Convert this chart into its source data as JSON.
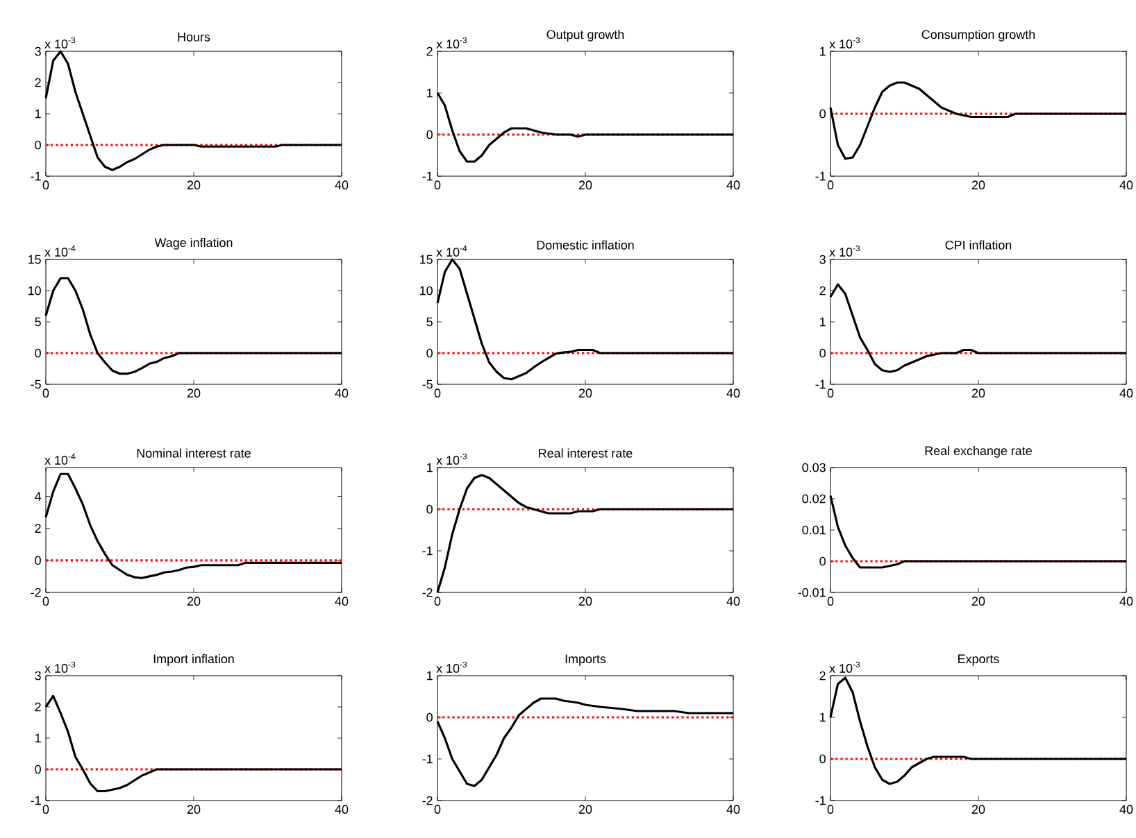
{
  "chart_data": [
    {
      "type": "line",
      "title": "Hours",
      "annotations": [
        "x 10$^{-3}$"
      ],
      "xlim": [
        0,
        40
      ],
      "xticks": [
        0,
        20,
        40
      ],
      "ylim": [
        -1,
        3
      ],
      "yticks": [
        -1,
        0,
        1,
        2,
        3
      ],
      "ref_lines": [
        {
          "axis": "y",
          "value": 0,
          "color": "#ff0000",
          "line_style": "dotted"
        }
      ],
      "series": [
        {
          "color": "#000000",
          "x": [
            0,
            1,
            2,
            3,
            4,
            5,
            6,
            7,
            8,
            9,
            10,
            11,
            12,
            13,
            14,
            15,
            16,
            20,
            21,
            31,
            32,
            40
          ],
          "values": [
            1.5,
            2.7,
            3.0,
            2.6,
            1.7,
            1.0,
            0.3,
            -0.4,
            -0.7,
            -0.8,
            -0.7,
            -0.55,
            -0.45,
            -0.3,
            -0.15,
            -0.05,
            0,
            0,
            -0.05,
            -0.05,
            0,
            0
          ]
        }
      ]
    },
    {
      "type": "line",
      "title": "Output growth",
      "annotations": [
        "x 10$^{-3}$"
      ],
      "xlim": [
        0,
        40
      ],
      "xticks": [
        0,
        20,
        40
      ],
      "ylim": [
        -1,
        2
      ],
      "yticks": [
        -1,
        0,
        1,
        2
      ],
      "ref_lines": [
        {
          "axis": "y",
          "value": 0,
          "color": "#ff0000",
          "line_style": "dotted"
        }
      ],
      "series": [
        {
          "color": "#000000",
          "x": [
            0,
            1,
            2,
            3,
            4,
            5,
            6,
            7,
            8,
            9,
            10,
            12,
            13,
            14,
            16,
            18,
            19,
            20,
            40
          ],
          "values": [
            1.0,
            0.7,
            0.1,
            -0.4,
            -0.65,
            -0.65,
            -0.5,
            -0.25,
            -0.1,
            0.05,
            0.15,
            0.15,
            0.1,
            0.05,
            0,
            0,
            -0.05,
            0,
            0
          ]
        }
      ]
    },
    {
      "type": "line",
      "title": "Consumption growth",
      "annotations": [
        "x 10$^{-3}$"
      ],
      "xlim": [
        0,
        40
      ],
      "xticks": [
        0,
        20,
        40
      ],
      "ylim": [
        -1,
        1
      ],
      "yticks": [
        -1,
        0,
        1
      ],
      "ref_lines": [
        {
          "axis": "y",
          "value": 0,
          "color": "#ff0000",
          "line_style": "dotted"
        }
      ],
      "series": [
        {
          "color": "#000000",
          "x": [
            0,
            1,
            2,
            3,
            4,
            5,
            6,
            7,
            8,
            9,
            10,
            11,
            12,
            13,
            14,
            15,
            16,
            17,
            19,
            24,
            25,
            40
          ],
          "values": [
            0.1,
            -0.5,
            -0.72,
            -0.7,
            -0.5,
            -0.2,
            0.1,
            0.35,
            0.45,
            0.5,
            0.5,
            0.45,
            0.4,
            0.3,
            0.2,
            0.1,
            0.05,
            0,
            -0.05,
            -0.05,
            0,
            0
          ]
        }
      ]
    },
    {
      "type": "line",
      "title": "Wage inflation",
      "annotations": [
        "x 10$^{-4}$"
      ],
      "xlim": [
        0,
        40
      ],
      "xticks": [
        0,
        20,
        40
      ],
      "ylim": [
        -5,
        15
      ],
      "yticks": [
        -5,
        0,
        5,
        10,
        15
      ],
      "ref_lines": [
        {
          "axis": "y",
          "value": 0,
          "color": "#ff0000",
          "line_style": "dotted"
        }
      ],
      "series": [
        {
          "color": "#000000",
          "x": [
            0,
            1,
            2,
            3,
            4,
            5,
            6,
            7,
            8,
            9,
            10,
            11,
            12,
            13,
            14,
            15,
            16,
            17,
            18,
            40
          ],
          "values": [
            6,
            10,
            12,
            12,
            10,
            7,
            3,
            0,
            -1.5,
            -2.8,
            -3.3,
            -3.3,
            -3,
            -2.4,
            -1.7,
            -1.4,
            -0.8,
            -0.5,
            0,
            0
          ]
        }
      ]
    },
    {
      "type": "line",
      "title": "Domestic inflation",
      "annotations": [
        "x 10$^{-4}$"
      ],
      "xlim": [
        0,
        40
      ],
      "xticks": [
        0,
        20,
        40
      ],
      "ylim": [
        -5,
        15
      ],
      "yticks": [
        -5,
        0,
        5,
        10,
        15
      ],
      "ref_lines": [
        {
          "axis": "y",
          "value": 0,
          "color": "#ff0000",
          "line_style": "dotted"
        }
      ],
      "series": [
        {
          "color": "#000000",
          "x": [
            0,
            1,
            2,
            3,
            4,
            5,
            6,
            7,
            8,
            9,
            10,
            11,
            12,
            13,
            14,
            15,
            16,
            17,
            18,
            19,
            21,
            22,
            40
          ],
          "values": [
            8,
            13,
            15,
            13.5,
            9.5,
            5.5,
            1.5,
            -1.5,
            -3,
            -4,
            -4.2,
            -3.7,
            -3.2,
            -2.3,
            -1.5,
            -0.8,
            -0.1,
            0.1,
            0.2,
            0.5,
            0.5,
            0,
            0
          ]
        }
      ]
    },
    {
      "type": "line",
      "title": "CPI inflation",
      "annotations": [
        "x 10$^{-3}$"
      ],
      "xlim": [
        0,
        40
      ],
      "xticks": [
        0,
        20,
        40
      ],
      "ylim": [
        -1,
        3
      ],
      "yticks": [
        -1,
        0,
        1,
        2,
        3
      ],
      "ref_lines": [
        {
          "axis": "y",
          "value": 0,
          "color": "#ff0000",
          "line_style": "dotted"
        }
      ],
      "series": [
        {
          "color": "#000000",
          "x": [
            0,
            1,
            2,
            3,
            4,
            5,
            6,
            7,
            8,
            9,
            10,
            11,
            12,
            13,
            14,
            15,
            17,
            18,
            19,
            20,
            40
          ],
          "values": [
            1.8,
            2.2,
            1.9,
            1.2,
            0.5,
            0.1,
            -0.35,
            -0.55,
            -0.6,
            -0.55,
            -0.4,
            -0.3,
            -0.2,
            -0.1,
            -0.05,
            0,
            0,
            0.1,
            0.1,
            0,
            0
          ]
        }
      ]
    },
    {
      "type": "line",
      "title": "Nominal interest rate",
      "annotations": [
        "x 10$^{-4}$"
      ],
      "xlim": [
        0,
        40
      ],
      "xticks": [
        0,
        20,
        40
      ],
      "ylim": [
        -2,
        5.8
      ],
      "yticks": [
        -2,
        0,
        2,
        4
      ],
      "ref_lines": [
        {
          "axis": "y",
          "value": 0,
          "color": "#ff0000",
          "line_style": "dotted"
        }
      ],
      "series": [
        {
          "color": "#000000",
          "x": [
            0,
            1,
            2,
            3,
            4,
            5,
            6,
            7,
            8,
            9,
            10,
            11,
            12,
            13,
            14,
            15,
            16,
            17,
            18,
            19,
            20,
            21,
            26,
            27,
            40
          ],
          "values": [
            2.7,
            4.3,
            5.4,
            5.4,
            4.5,
            3.5,
            2.2,
            1.2,
            0.4,
            -0.3,
            -0.6,
            -0.9,
            -1.05,
            -1.1,
            -1,
            -0.9,
            -0.75,
            -0.7,
            -0.6,
            -0.45,
            -0.4,
            -0.3,
            -0.3,
            -0.15,
            -0.15
          ]
        }
      ]
    },
    {
      "type": "line",
      "title": "Real interest rate",
      "annotations": [
        "x 10$^{-3}$"
      ],
      "xlim": [
        0,
        40
      ],
      "xticks": [
        0,
        20,
        40
      ],
      "ylim": [
        -2,
        1
      ],
      "yticks": [
        -2,
        -1,
        0,
        1
      ],
      "ref_lines": [
        {
          "axis": "y",
          "value": 0,
          "color": "#ff0000",
          "line_style": "dotted"
        }
      ],
      "series": [
        {
          "color": "#000000",
          "x": [
            0,
            1,
            2,
            3,
            4,
            5,
            6,
            7,
            8,
            9,
            10,
            11,
            12,
            13,
            14,
            15,
            18,
            19,
            21,
            22,
            40
          ],
          "values": [
            -2,
            -1.4,
            -0.6,
            0,
            0.5,
            0.75,
            0.82,
            0.75,
            0.6,
            0.45,
            0.3,
            0.15,
            0.05,
            0,
            -0.05,
            -0.1,
            -0.1,
            -0.05,
            -0.05,
            0,
            0
          ]
        }
      ]
    },
    {
      "type": "line",
      "title": "Real exchange rate",
      "xlim": [
        0,
        40
      ],
      "xticks": [
        0,
        20,
        40
      ],
      "ylim": [
        -0.01,
        0.03
      ],
      "yticks": [
        -0.01,
        0,
        0.01,
        0.02,
        0.03
      ],
      "ref_lines": [
        {
          "axis": "y",
          "value": 0,
          "color": "#ff0000",
          "line_style": "dotted"
        }
      ],
      "series": [
        {
          "color": "#000000",
          "x": [
            0,
            1,
            2,
            3,
            4,
            7,
            8,
            9,
            10,
            40
          ],
          "values": [
            0.021,
            0.011,
            0.005,
            0.001,
            -0.002,
            -0.002,
            -0.0015,
            -0.001,
            0,
            0
          ]
        }
      ]
    },
    {
      "type": "line",
      "title": "Import inflation",
      "annotations": [
        "x 10$^{-3}$"
      ],
      "xlim": [
        0,
        40
      ],
      "xticks": [
        0,
        20,
        40
      ],
      "ylim": [
        -1,
        3
      ],
      "yticks": [
        -1,
        0,
        1,
        2,
        3
      ],
      "ref_lines": [
        {
          "axis": "y",
          "value": 0,
          "color": "#ff0000",
          "line_style": "dotted"
        }
      ],
      "series": [
        {
          "color": "#000000",
          "x": [
            0,
            1,
            2,
            3,
            4,
            5,
            6,
            7,
            8,
            9,
            10,
            11,
            12,
            13,
            14,
            15,
            40
          ],
          "values": [
            2,
            2.35,
            1.8,
            1.2,
            0.4,
            0,
            -0.45,
            -0.7,
            -0.7,
            -0.65,
            -0.6,
            -0.5,
            -0.35,
            -0.2,
            -0.1,
            0,
            0
          ]
        }
      ]
    },
    {
      "type": "line",
      "title": "Imports",
      "annotations": [
        "x 10$^{-3}$"
      ],
      "xlim": [
        0,
        40
      ],
      "xticks": [
        0,
        20,
        40
      ],
      "ylim": [
        -2,
        1
      ],
      "yticks": [
        -2,
        -1,
        0,
        1
      ],
      "ref_lines": [
        {
          "axis": "y",
          "value": 0,
          "color": "#ff0000",
          "line_style": "dotted"
        }
      ],
      "series": [
        {
          "color": "#000000",
          "x": [
            0,
            1,
            2,
            3,
            4,
            5,
            6,
            7,
            8,
            9,
            10,
            11,
            12,
            13,
            14,
            16,
            17,
            19,
            20,
            22,
            25,
            27,
            32,
            34,
            40
          ],
          "values": [
            -0.1,
            -0.5,
            -1.0,
            -1.3,
            -1.6,
            -1.65,
            -1.5,
            -1.2,
            -0.9,
            -0.5,
            -0.25,
            0.05,
            0.2,
            0.35,
            0.45,
            0.45,
            0.4,
            0.35,
            0.3,
            0.25,
            0.2,
            0.15,
            0.15,
            0.1,
            0.1
          ]
        }
      ]
    },
    {
      "type": "line",
      "title": "Exports",
      "annotations": [
        "x 10$^{-3}$"
      ],
      "xlim": [
        0,
        40
      ],
      "xticks": [
        0,
        20,
        40
      ],
      "ylim": [
        -1,
        2
      ],
      "yticks": [
        -1,
        0,
        1,
        2
      ],
      "ref_lines": [
        {
          "axis": "y",
          "value": 0,
          "color": "#ff0000",
          "line_style": "dotted"
        }
      ],
      "series": [
        {
          "color": "#000000",
          "x": [
            0,
            1,
            2,
            3,
            4,
            5,
            6,
            7,
            8,
            9,
            10,
            11,
            12,
            13,
            14,
            18,
            19,
            40
          ],
          "values": [
            1.0,
            1.8,
            1.95,
            1.6,
            0.9,
            0.3,
            -0.2,
            -0.5,
            -0.6,
            -0.55,
            -0.4,
            -0.2,
            -0.1,
            0,
            0.05,
            0.05,
            0,
            0
          ]
        }
      ]
    }
  ]
}
